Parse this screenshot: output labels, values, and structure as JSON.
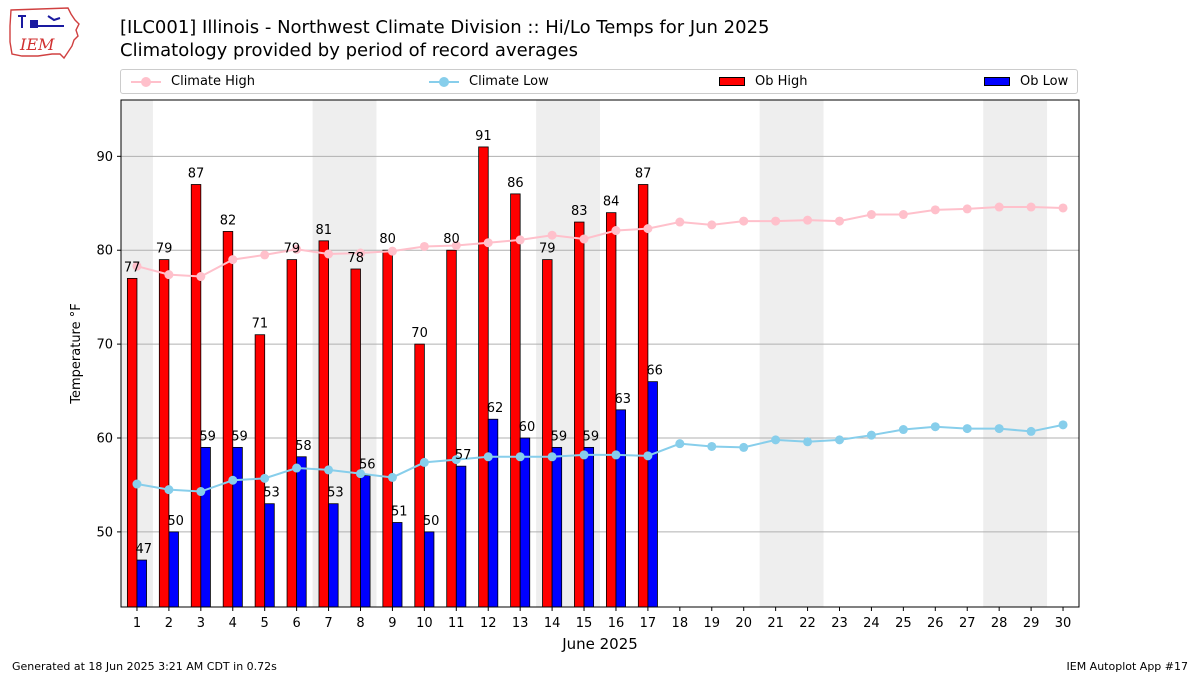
{
  "header": {
    "logo_text": "IEM",
    "title_line1": "[ILC001] Illinois - Northwest Climate Division :: Hi/Lo Temps for Jun 2025",
    "title_line2": "Climatology provided by period of record averages"
  },
  "legend": {
    "climate_high": "Climate High",
    "climate_low": "Climate Low",
    "ob_high": "Ob High",
    "ob_low": "Ob Low"
  },
  "footer": {
    "generated": "Generated at 18 Jun 2025 3:21 AM CDT in 0.72s",
    "app": "IEM Autoplot App #17"
  },
  "colors": {
    "ob_high": "#ff0000",
    "ob_low": "#0000ff",
    "climate_high": "#ffc0cb",
    "climate_low": "#87ceeb",
    "weekend_shade": "#eeeeee"
  },
  "chart_data": {
    "type": "bar",
    "xlabel": "June 2025",
    "ylabel": "Temperature °F",
    "xlim": [
      0.5,
      30.5
    ],
    "ylim": [
      42,
      96
    ],
    "yticks": [
      50,
      60,
      70,
      80,
      90
    ],
    "grid": "horizontal",
    "legend_position": "top",
    "days": [
      1,
      2,
      3,
      4,
      5,
      6,
      7,
      8,
      9,
      10,
      11,
      12,
      13,
      14,
      15,
      16,
      17,
      18,
      19,
      20,
      21,
      22,
      23,
      24,
      25,
      26,
      27,
      28,
      29,
      30
    ],
    "weekend_days": [
      1,
      7,
      8,
      14,
      15,
      21,
      22,
      28,
      29
    ],
    "series": [
      {
        "name": "Ob High",
        "kind": "bar",
        "values": [
          77,
          79,
          87,
          82,
          71,
          79,
          81,
          78,
          80,
          70,
          80,
          91,
          86,
          79,
          83,
          84,
          87
        ]
      },
      {
        "name": "Ob Low",
        "kind": "bar",
        "values": [
          47,
          50,
          59,
          59,
          53,
          58,
          53,
          56,
          51,
          50,
          57,
          62,
          60,
          59,
          59,
          63,
          66
        ]
      },
      {
        "name": "Climate High",
        "kind": "line",
        "values": [
          78.3,
          77.4,
          77.2,
          79.0,
          79.5,
          80.1,
          79.6,
          79.7,
          79.9,
          80.4,
          80.5,
          80.8,
          81.1,
          81.6,
          81.2,
          82.1,
          82.3,
          83.0,
          82.7,
          83.1,
          83.1,
          83.2,
          83.1,
          83.8,
          83.8,
          84.3,
          84.4,
          84.6,
          84.6,
          84.5
        ]
      },
      {
        "name": "Climate Low",
        "kind": "line",
        "values": [
          55.1,
          54.5,
          54.3,
          55.5,
          55.7,
          56.8,
          56.6,
          56.2,
          55.8,
          57.4,
          57.7,
          58.0,
          58.0,
          58.0,
          58.2,
          58.2,
          58.1,
          59.4,
          59.1,
          59.0,
          59.8,
          59.6,
          59.8,
          60.3,
          60.9,
          61.2,
          61.0,
          61.0,
          60.7,
          61.4
        ]
      }
    ]
  }
}
